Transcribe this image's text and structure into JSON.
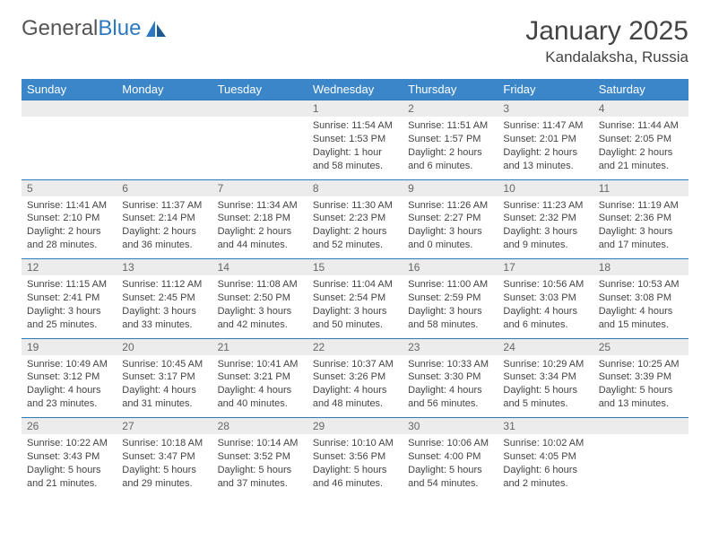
{
  "brand": {
    "part1": "General",
    "part2": "Blue"
  },
  "title": "January 2025",
  "location": "Kandalaksha, Russia",
  "colors": {
    "header_bg": "#3a86c8",
    "header_text": "#ffffff",
    "daynum_bg": "#ececec",
    "border": "#2d79bf",
    "body_text": "#444444"
  },
  "weekdays": [
    "Sunday",
    "Monday",
    "Tuesday",
    "Wednesday",
    "Thursday",
    "Friday",
    "Saturday"
  ],
  "weeks": [
    [
      null,
      null,
      null,
      {
        "n": "1",
        "sr": "Sunrise: 11:54 AM",
        "ss": "Sunset: 1:53 PM",
        "dl": "Daylight: 1 hour and 58 minutes."
      },
      {
        "n": "2",
        "sr": "Sunrise: 11:51 AM",
        "ss": "Sunset: 1:57 PM",
        "dl": "Daylight: 2 hours and 6 minutes."
      },
      {
        "n": "3",
        "sr": "Sunrise: 11:47 AM",
        "ss": "Sunset: 2:01 PM",
        "dl": "Daylight: 2 hours and 13 minutes."
      },
      {
        "n": "4",
        "sr": "Sunrise: 11:44 AM",
        "ss": "Sunset: 2:05 PM",
        "dl": "Daylight: 2 hours and 21 minutes."
      }
    ],
    [
      {
        "n": "5",
        "sr": "Sunrise: 11:41 AM",
        "ss": "Sunset: 2:10 PM",
        "dl": "Daylight: 2 hours and 28 minutes."
      },
      {
        "n": "6",
        "sr": "Sunrise: 11:37 AM",
        "ss": "Sunset: 2:14 PM",
        "dl": "Daylight: 2 hours and 36 minutes."
      },
      {
        "n": "7",
        "sr": "Sunrise: 11:34 AM",
        "ss": "Sunset: 2:18 PM",
        "dl": "Daylight: 2 hours and 44 minutes."
      },
      {
        "n": "8",
        "sr": "Sunrise: 11:30 AM",
        "ss": "Sunset: 2:23 PM",
        "dl": "Daylight: 2 hours and 52 minutes."
      },
      {
        "n": "9",
        "sr": "Sunrise: 11:26 AM",
        "ss": "Sunset: 2:27 PM",
        "dl": "Daylight: 3 hours and 0 minutes."
      },
      {
        "n": "10",
        "sr": "Sunrise: 11:23 AM",
        "ss": "Sunset: 2:32 PM",
        "dl": "Daylight: 3 hours and 9 minutes."
      },
      {
        "n": "11",
        "sr": "Sunrise: 11:19 AM",
        "ss": "Sunset: 2:36 PM",
        "dl": "Daylight: 3 hours and 17 minutes."
      }
    ],
    [
      {
        "n": "12",
        "sr": "Sunrise: 11:15 AM",
        "ss": "Sunset: 2:41 PM",
        "dl": "Daylight: 3 hours and 25 minutes."
      },
      {
        "n": "13",
        "sr": "Sunrise: 11:12 AM",
        "ss": "Sunset: 2:45 PM",
        "dl": "Daylight: 3 hours and 33 minutes."
      },
      {
        "n": "14",
        "sr": "Sunrise: 11:08 AM",
        "ss": "Sunset: 2:50 PM",
        "dl": "Daylight: 3 hours and 42 minutes."
      },
      {
        "n": "15",
        "sr": "Sunrise: 11:04 AM",
        "ss": "Sunset: 2:54 PM",
        "dl": "Daylight: 3 hours and 50 minutes."
      },
      {
        "n": "16",
        "sr": "Sunrise: 11:00 AM",
        "ss": "Sunset: 2:59 PM",
        "dl": "Daylight: 3 hours and 58 minutes."
      },
      {
        "n": "17",
        "sr": "Sunrise: 10:56 AM",
        "ss": "Sunset: 3:03 PM",
        "dl": "Daylight: 4 hours and 6 minutes."
      },
      {
        "n": "18",
        "sr": "Sunrise: 10:53 AM",
        "ss": "Sunset: 3:08 PM",
        "dl": "Daylight: 4 hours and 15 minutes."
      }
    ],
    [
      {
        "n": "19",
        "sr": "Sunrise: 10:49 AM",
        "ss": "Sunset: 3:12 PM",
        "dl": "Daylight: 4 hours and 23 minutes."
      },
      {
        "n": "20",
        "sr": "Sunrise: 10:45 AM",
        "ss": "Sunset: 3:17 PM",
        "dl": "Daylight: 4 hours and 31 minutes."
      },
      {
        "n": "21",
        "sr": "Sunrise: 10:41 AM",
        "ss": "Sunset: 3:21 PM",
        "dl": "Daylight: 4 hours and 40 minutes."
      },
      {
        "n": "22",
        "sr": "Sunrise: 10:37 AM",
        "ss": "Sunset: 3:26 PM",
        "dl": "Daylight: 4 hours and 48 minutes."
      },
      {
        "n": "23",
        "sr": "Sunrise: 10:33 AM",
        "ss": "Sunset: 3:30 PM",
        "dl": "Daylight: 4 hours and 56 minutes."
      },
      {
        "n": "24",
        "sr": "Sunrise: 10:29 AM",
        "ss": "Sunset: 3:34 PM",
        "dl": "Daylight: 5 hours and 5 minutes."
      },
      {
        "n": "25",
        "sr": "Sunrise: 10:25 AM",
        "ss": "Sunset: 3:39 PM",
        "dl": "Daylight: 5 hours and 13 minutes."
      }
    ],
    [
      {
        "n": "26",
        "sr": "Sunrise: 10:22 AM",
        "ss": "Sunset: 3:43 PM",
        "dl": "Daylight: 5 hours and 21 minutes."
      },
      {
        "n": "27",
        "sr": "Sunrise: 10:18 AM",
        "ss": "Sunset: 3:47 PM",
        "dl": "Daylight: 5 hours and 29 minutes."
      },
      {
        "n": "28",
        "sr": "Sunrise: 10:14 AM",
        "ss": "Sunset: 3:52 PM",
        "dl": "Daylight: 5 hours and 37 minutes."
      },
      {
        "n": "29",
        "sr": "Sunrise: 10:10 AM",
        "ss": "Sunset: 3:56 PM",
        "dl": "Daylight: 5 hours and 46 minutes."
      },
      {
        "n": "30",
        "sr": "Sunrise: 10:06 AM",
        "ss": "Sunset: 4:00 PM",
        "dl": "Daylight: 5 hours and 54 minutes."
      },
      {
        "n": "31",
        "sr": "Sunrise: 10:02 AM",
        "ss": "Sunset: 4:05 PM",
        "dl": "Daylight: 6 hours and 2 minutes."
      },
      null
    ]
  ]
}
